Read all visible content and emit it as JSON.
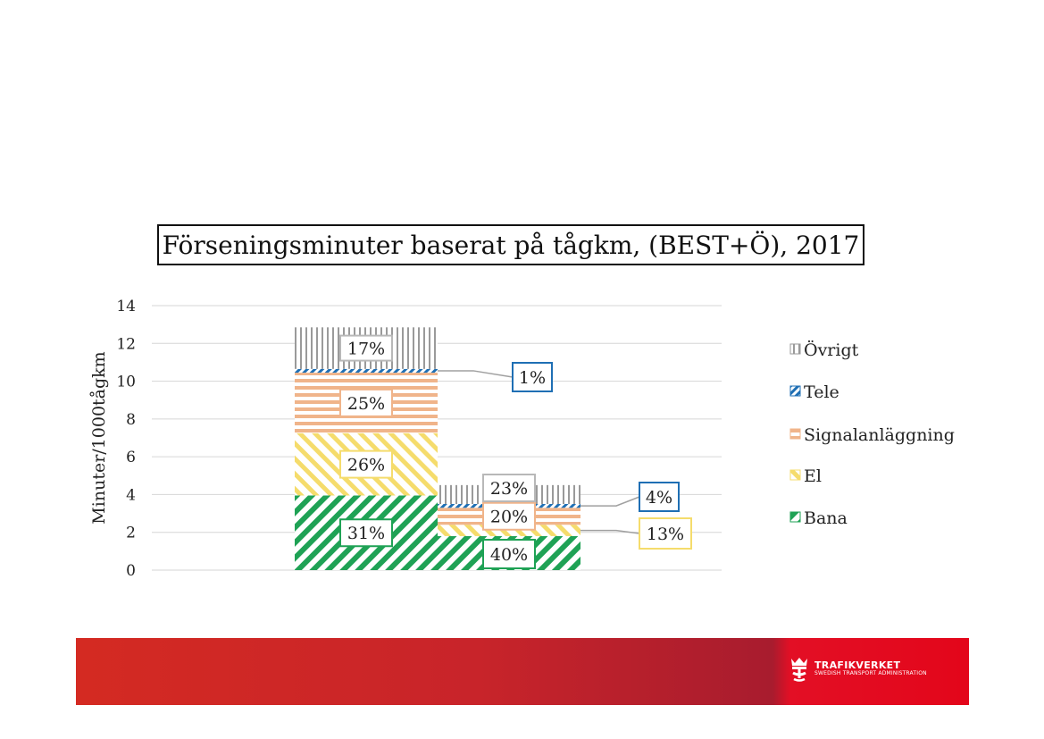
{
  "chart_data": {
    "type": "bar",
    "stacked": true,
    "title": "Förseningsminuter baserat på tågkm, (BEST+Ö), 2017",
    "ylabel": "Minuter/1000tågkm",
    "ylim": [
      0,
      14
    ],
    "yticks": [
      0,
      2,
      4,
      6,
      8,
      10,
      12,
      14
    ],
    "grid": true,
    "legend_position": "right",
    "stacks": [
      {
        "name": "",
        "series": [
          {
            "name": "Bana",
            "value": 3.95,
            "label": "31%"
          },
          {
            "name": "El",
            "value": 3.3,
            "label": "26%"
          },
          {
            "name": "Signalanläggning",
            "value": 3.2,
            "label": "25%"
          },
          {
            "name": "Tele",
            "value": 0.2,
            "label": "1%"
          },
          {
            "name": "Övrigt",
            "value": 2.2,
            "label": "17%"
          }
        ]
      },
      {
        "name": "",
        "series": [
          {
            "name": "Bana",
            "value": 1.8,
            "label": "40%"
          },
          {
            "name": "El",
            "value": 0.6,
            "label": "13%"
          },
          {
            "name": "Signalanläggning",
            "value": 0.9,
            "label": "20%"
          },
          {
            "name": "Tele",
            "value": 0.2,
            "label": "4%"
          },
          {
            "name": "Övrigt",
            "value": 1.0,
            "label": "23%"
          }
        ]
      }
    ],
    "legend": [
      "Övrigt",
      "Tele",
      "Signalanläggning",
      "El",
      "Bana"
    ],
    "colors": {
      "Bana": "#1fa255",
      "El": "#f5dc6c",
      "Signalanläggning": "#f0b48a",
      "Tele": "#1f6fb4",
      "Övrigt": "#9a9a9a"
    }
  },
  "footer": {
    "brand": "TRAFIKVERKET",
    "tagline": "SWEDISH TRANSPORT ADMINISTRATION",
    "logo_icon": "swedish-crown-logo-icon"
  }
}
